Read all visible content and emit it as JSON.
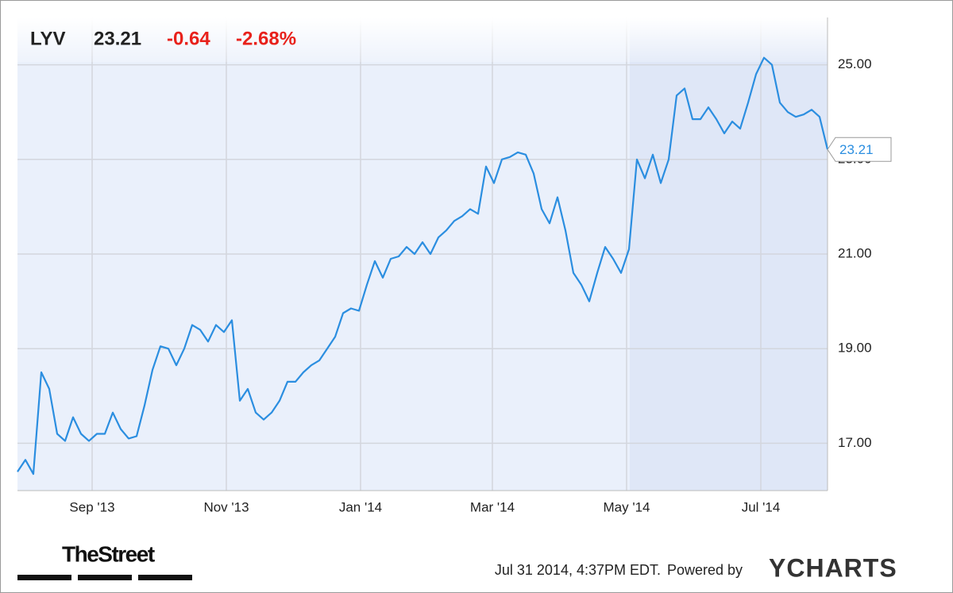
{
  "header": {
    "ticker": "LYV",
    "change": "-0.64",
    "change_pct": "-2.68%"
  },
  "footer": {
    "brand": "TheStreet",
    "timestamp": "Jul 31 2014, 4:37PM EDT.",
    "powered": "Powered by",
    "provider": "YCHARTS"
  },
  "chart_data": {
    "type": "line",
    "series": [
      {
        "name": "LYV",
        "color": "#2b8ee0",
        "values": [
          16.4,
          16.65,
          16.35,
          18.5,
          18.15,
          17.2,
          17.05,
          17.55,
          17.2,
          17.05,
          17.2,
          17.2,
          17.65,
          17.3,
          17.1,
          17.15,
          17.8,
          18.55,
          19.05,
          19.0,
          18.65,
          19.0,
          19.5,
          19.4,
          19.15,
          19.5,
          19.35,
          19.6,
          17.9,
          18.15,
          17.65,
          17.5,
          17.65,
          17.9,
          18.3,
          18.3,
          18.5,
          18.65,
          18.75,
          19.0,
          19.25,
          19.75,
          19.85,
          19.8,
          20.35,
          20.85,
          20.5,
          20.9,
          20.95,
          21.15,
          21.0,
          21.25,
          21.0,
          21.35,
          21.5,
          21.7,
          21.8,
          21.95,
          21.85,
          22.85,
          22.5,
          23.0,
          23.05,
          23.15,
          23.1,
          22.7,
          21.95,
          21.65,
          22.2,
          21.5,
          20.6,
          20.35,
          20.0,
          20.6,
          21.15,
          20.9,
          20.6,
          21.1,
          23.0,
          22.6,
          23.1,
          22.5,
          23.0,
          24.35,
          24.5,
          23.85,
          23.85,
          24.1,
          23.85,
          23.55,
          23.8,
          23.65,
          24.2,
          24.8,
          25.15,
          25.0,
          24.2,
          24.0,
          23.9,
          23.95,
          24.05,
          23.9,
          23.21
        ]
      }
    ],
    "xlim": [
      0,
      102
    ],
    "xticks": [
      {
        "value": 9.4,
        "label": "Sep '13"
      },
      {
        "value": 26.3,
        "label": "Nov '13"
      },
      {
        "value": 43.2,
        "label": "Jan '14"
      },
      {
        "value": 59.8,
        "label": "Mar '14"
      },
      {
        "value": 76.7,
        "label": "May '14"
      },
      {
        "value": 93.6,
        "label": "Jul '14"
      }
    ],
    "ylim": [
      16,
      26
    ],
    "yticks": [
      {
        "value": 17,
        "label": "17.00"
      },
      {
        "value": 19,
        "label": "19.00"
      },
      {
        "value": 21,
        "label": "21.00"
      },
      {
        "value": 23,
        "label": "23.00"
      },
      {
        "value": 25,
        "label": "25.00"
      }
    ],
    "grid": true
  }
}
